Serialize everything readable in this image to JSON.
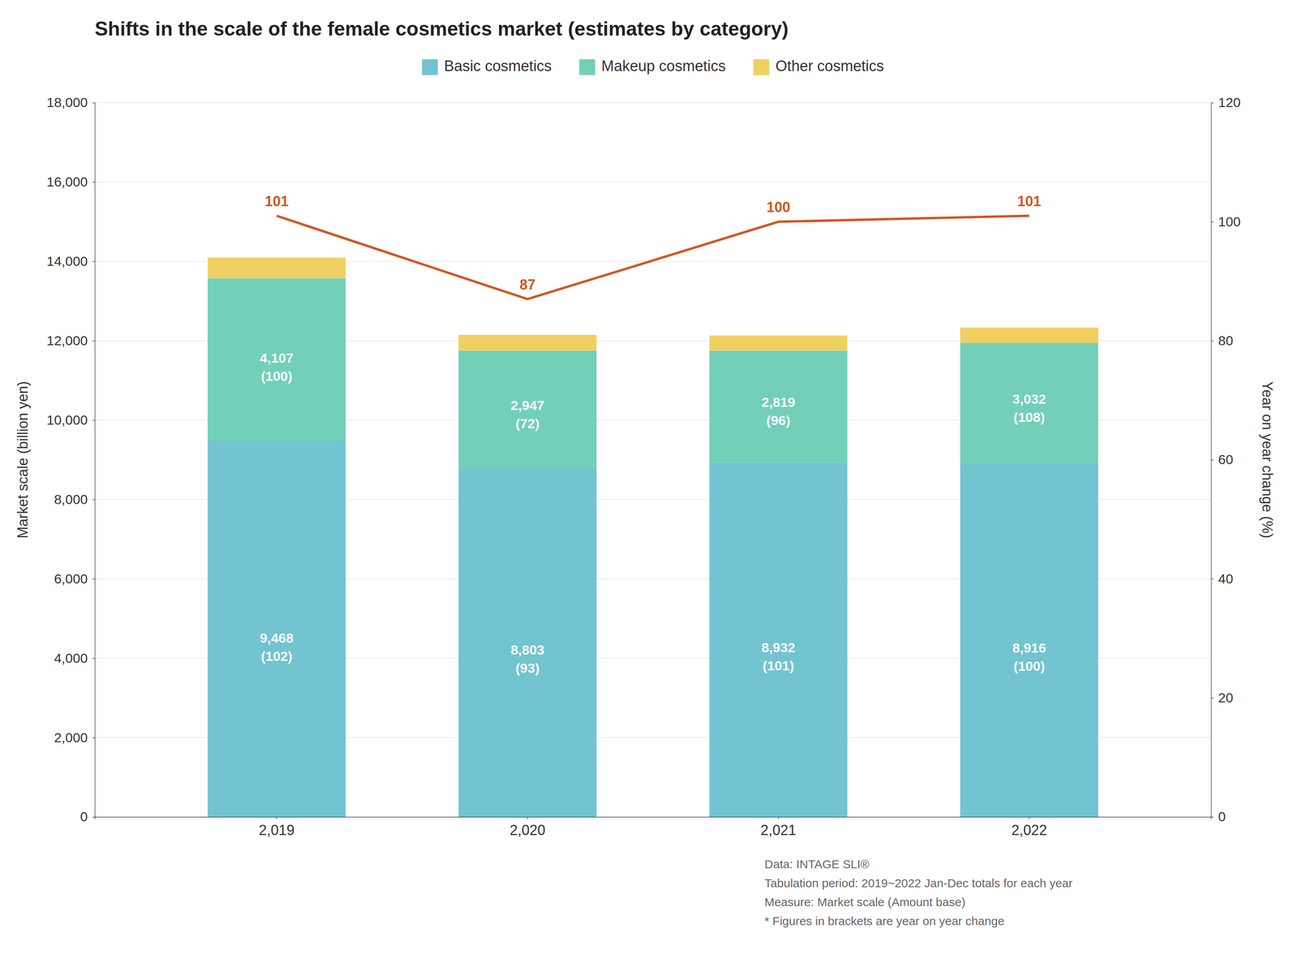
{
  "chart_data": {
    "type": "bar",
    "title": "Shifts in the scale of the female cosmetics market (estimates by category)",
    "categories": [
      "2,019",
      "2,020",
      "2,021",
      "2,022"
    ],
    "stacked": true,
    "series": [
      {
        "name": "Basic cosmetics",
        "color": "#72C4D0",
        "values": [
          9468,
          8803,
          8932,
          8916
        ],
        "data_labels": true,
        "value_labels": [
          "9,468",
          "8,803",
          "8,932",
          "8,916"
        ],
        "yoy_labels": [
          "(102)",
          "(93)",
          "(101)",
          "(100)"
        ]
      },
      {
        "name": "Makeup cosmetics",
        "color": "#72CFB8",
        "values": [
          4107,
          2947,
          2819,
          3032
        ],
        "data_labels": true,
        "value_labels": [
          "4,107",
          "2,947",
          "2,819",
          "3,032"
        ],
        "yoy_labels": [
          "(100)",
          "(72)",
          "(96)",
          "(108)"
        ]
      },
      {
        "name": "Other cosmetics",
        "color": "#F0D060",
        "values": [
          519,
          399,
          381,
          384
        ],
        "data_labels": false
      },
      {
        "type": "line",
        "axis": "y2",
        "color": "#D05820",
        "values": [
          101,
          87,
          100,
          101
        ],
        "data_labels": true
      }
    ],
    "ylabel": "Market scale (billion yen)",
    "y2label": "Year on year change (%)",
    "ylim": [
      0,
      18000
    ],
    "yticks": [
      0,
      {
        "value": 2000,
        "label": "2,000"
      },
      {
        "value": 4000,
        "label": "4,000"
      },
      {
        "value": 6000,
        "label": "6,000"
      },
      {
        "value": 8000,
        "label": "8,000"
      },
      {
        "value": 10000,
        "label": "10,000"
      },
      {
        "value": 12000,
        "label": "12,000"
      },
      {
        "value": 14000,
        "label": "14,000"
      },
      {
        "value": 16000,
        "label": "16,000"
      },
      {
        "value": 18000,
        "label": "18,000"
      }
    ],
    "y2lim": [
      0,
      120
    ],
    "y2ticks": [
      0,
      20,
      40,
      60,
      80,
      100,
      120
    ],
    "grid": true,
    "legend": "top",
    "annotations": [
      "Data: INTAGE SLI®",
      "Tabulation period: 2019~2022 Jan-Dec totals for each year",
      "Measure: Market scale (Amount base)",
      "* Figures in brackets are year on year change"
    ]
  }
}
